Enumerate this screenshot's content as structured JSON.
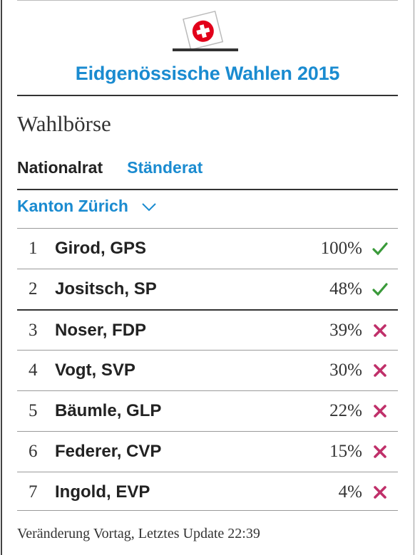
{
  "header": {
    "logo_icon": "ballot-box-swiss-flag-icon",
    "title": "Eidgenössische Wahlen 2015"
  },
  "section": {
    "title": "Wahlbörse"
  },
  "tabs": [
    {
      "label": "Nationalrat",
      "active": true
    },
    {
      "label": "Ständerat",
      "active": false
    }
  ],
  "region": {
    "selected": "Kanton Zürich",
    "icon": "chevron-down-icon"
  },
  "colors": {
    "accent": "#1a8bd0",
    "elected": "#3a9a3a",
    "not_elected": "#c0306a"
  },
  "candidates": [
    {
      "rank": "1",
      "name": "Girod, GPS",
      "pct": "100%",
      "status": "elected"
    },
    {
      "rank": "2",
      "name": "Jositsch, SP",
      "pct": "48%",
      "status": "elected"
    },
    {
      "rank": "3",
      "name": "Noser, FDP",
      "pct": "39%",
      "status": "not_elected"
    },
    {
      "rank": "4",
      "name": "Vogt, SVP",
      "pct": "30%",
      "status": "not_elected"
    },
    {
      "rank": "5",
      "name": "Bäumle, GLP",
      "pct": "22%",
      "status": "not_elected"
    },
    {
      "rank": "6",
      "name": "Federer, CVP",
      "pct": "15%",
      "status": "not_elected"
    },
    {
      "rank": "7",
      "name": "Ingold, EVP",
      "pct": "4%",
      "status": "not_elected"
    }
  ],
  "footer": {
    "text": "Veränderung Vortag, Letztes Update 22:39"
  }
}
